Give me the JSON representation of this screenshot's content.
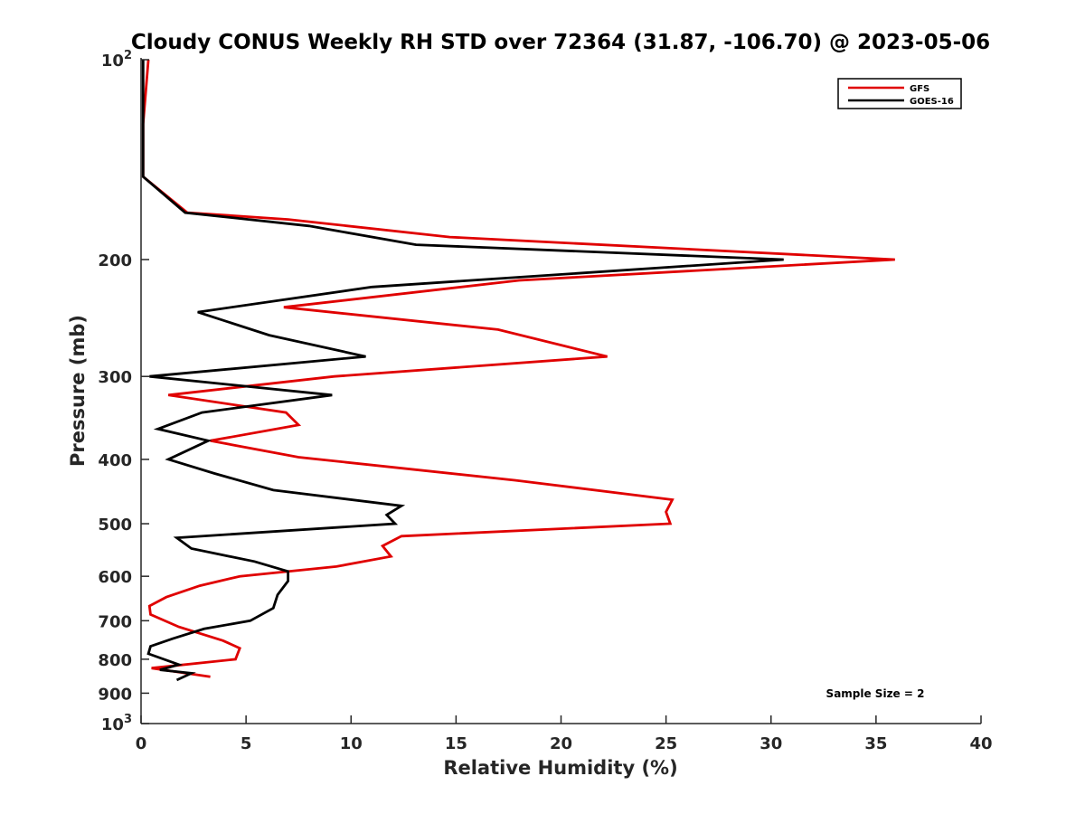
{
  "chart_data": {
    "type": "line",
    "title": "Cloudy CONUS Weekly RH STD over 72364 (31.87, -106.70) @ 2023-05-06",
    "xlabel": "Relative Humidity (%)",
    "ylabel": "Pressure (mb)",
    "xlim": [
      0,
      40
    ],
    "ylim": [
      100,
      1000
    ],
    "y_scale": "log",
    "y_reversed": true,
    "x_ticks": [
      0,
      5,
      10,
      15,
      20,
      25,
      30,
      35,
      40
    ],
    "x_tick_labels": [
      "0",
      "5",
      "10",
      "15",
      "20",
      "25",
      "30",
      "35",
      "40"
    ],
    "y_ticks": [
      100,
      200,
      300,
      400,
      500,
      600,
      700,
      800,
      900,
      1000
    ],
    "y_tick_labels": [
      {
        "base": "10",
        "exp": "2"
      },
      {
        "base": "200",
        "exp": ""
      },
      {
        "base": "300",
        "exp": ""
      },
      {
        "base": "400",
        "exp": ""
      },
      {
        "base": "500",
        "exp": ""
      },
      {
        "base": "600",
        "exp": ""
      },
      {
        "base": "700",
        "exp": ""
      },
      {
        "base": "800",
        "exp": ""
      },
      {
        "base": "900",
        "exp": ""
      },
      {
        "base": "10",
        "exp": "3"
      }
    ],
    "grid": false,
    "legend_position": "top-right",
    "annotation": "Sample Size = 2",
    "series": [
      {
        "name": "GFS",
        "color": "#e00000",
        "points": [
          [
            0.35,
            100
          ],
          [
            0.1,
            125
          ],
          [
            0.1,
            150
          ],
          [
            2.2,
            170
          ],
          [
            7,
            174
          ],
          [
            14.7,
            185
          ],
          [
            35.9,
            200
          ],
          [
            18,
            215
          ],
          [
            6.8,
            236
          ],
          [
            17,
            255
          ],
          [
            22.2,
            280
          ],
          [
            9.2,
            300
          ],
          [
            1.3,
            320
          ],
          [
            6.9,
            340
          ],
          [
            7.5,
            355
          ],
          [
            3.3,
            375
          ],
          [
            7.5,
            397
          ],
          [
            17.8,
            430
          ],
          [
            25.3,
            460
          ],
          [
            25,
            480
          ],
          [
            25.2,
            500
          ],
          [
            12.4,
            522
          ],
          [
            11.5,
            540
          ],
          [
            11.9,
            560
          ],
          [
            9.3,
            580
          ],
          [
            4.7,
            600
          ],
          [
            2.8,
            620
          ],
          [
            1.2,
            645
          ],
          [
            0.4,
            665
          ],
          [
            0.45,
            685
          ],
          [
            1.8,
            715
          ],
          [
            3.9,
            750
          ],
          [
            4.7,
            770
          ],
          [
            4.5,
            800
          ],
          [
            0.5,
            825
          ],
          [
            3.3,
            850
          ]
        ]
      },
      {
        "name": "GOES-16",
        "color": "#000000",
        "points": [
          [
            0.1,
            100
          ],
          [
            0.1,
            125
          ],
          [
            0.1,
            150
          ],
          [
            2.1,
            170
          ],
          [
            8,
            178
          ],
          [
            13.1,
            190
          ],
          [
            30.6,
            200
          ],
          [
            11,
            220
          ],
          [
            2.7,
            240
          ],
          [
            6.1,
            260
          ],
          [
            10.7,
            280
          ],
          [
            0.4,
            300
          ],
          [
            9.1,
            320
          ],
          [
            2.9,
            340
          ],
          [
            0.8,
            360
          ],
          [
            3.2,
            375
          ],
          [
            1.3,
            400
          ],
          [
            3.5,
            420
          ],
          [
            6.3,
            445
          ],
          [
            12.4,
            470
          ],
          [
            11.7,
            485
          ],
          [
            12.1,
            500
          ],
          [
            1.7,
            525
          ],
          [
            2.4,
            545
          ],
          [
            5.4,
            570
          ],
          [
            7,
            590
          ],
          [
            7,
            610
          ],
          [
            6.5,
            640
          ],
          [
            6.3,
            670
          ],
          [
            5.2,
            700
          ],
          [
            3,
            720
          ],
          [
            1.5,
            745
          ],
          [
            0.45,
            765
          ],
          [
            0.35,
            785
          ],
          [
            1.8,
            815
          ],
          [
            0.9,
            830
          ],
          [
            2.4,
            840
          ],
          [
            1.7,
            860
          ]
        ]
      }
    ]
  }
}
